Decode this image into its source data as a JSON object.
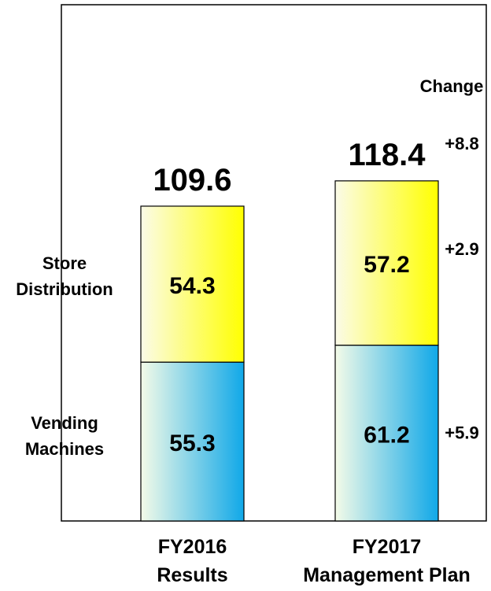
{
  "chart_data": {
    "type": "bar",
    "stacked": true,
    "categories": [
      "FY2016 Results",
      "FY2017 Management Plan"
    ],
    "category_label_lines": [
      [
        "FY2016",
        "Results"
      ],
      [
        "FY2017",
        "Management Plan"
      ]
    ],
    "series": [
      {
        "name": "Vending Machines",
        "name_lines": [
          "Vending",
          "Machines"
        ],
        "values": [
          55.3,
          61.2
        ],
        "value_labels": [
          "55.3",
          "61.2"
        ],
        "change_label": "+5.9",
        "gradient": [
          "#f4fbe8",
          "#10a8e8"
        ]
      },
      {
        "name": "Store Distribution",
        "name_lines": [
          "Store",
          "Distribution"
        ],
        "values": [
          54.3,
          57.2
        ],
        "value_labels": [
          "54.3",
          "57.2"
        ],
        "change_label": "+2.9",
        "gradient": [
          "#fbfbe8",
          "#ffff00"
        ]
      }
    ],
    "totals": [
      109.6,
      118.4
    ],
    "total_labels": [
      "109.6",
      "118.4"
    ],
    "change_header": "Change",
    "total_change_label": "+8.8",
    "title": "",
    "xlabel": "",
    "ylabel": "",
    "ylim": [
      0,
      130
    ],
    "grid": false,
    "legend": "none"
  }
}
